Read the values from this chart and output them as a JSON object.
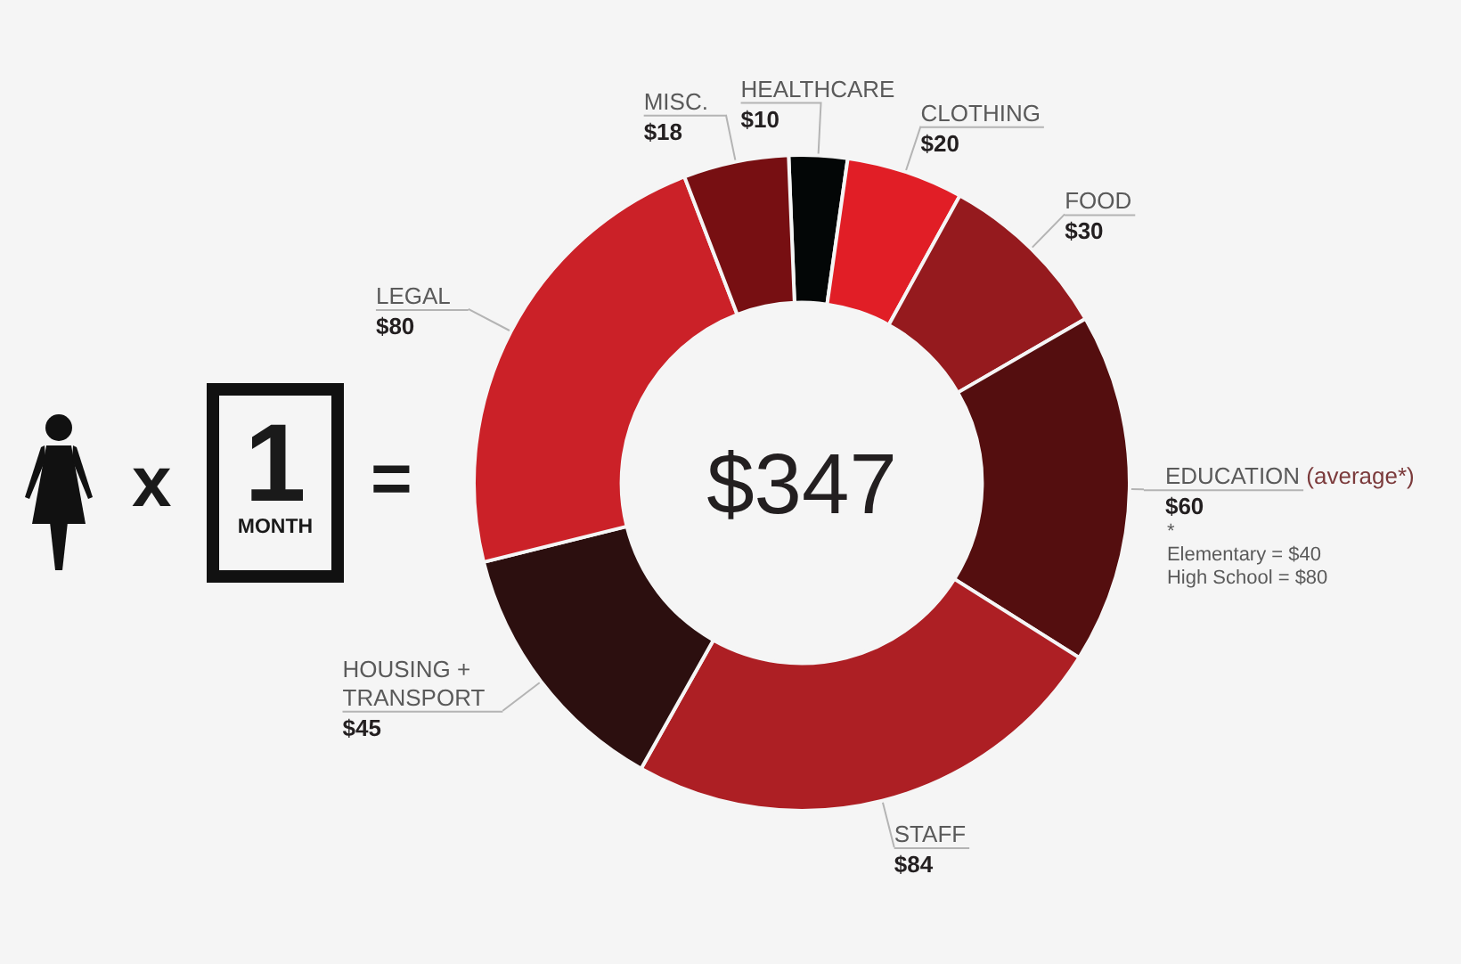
{
  "chart_data": {
    "type": "donut",
    "categories": [
      "HEALTHCARE",
      "CLOTHING",
      "FOOD",
      "EDUCATION (average*)",
      "STAFF",
      "HOUSING + TRANSPORT",
      "LEGAL",
      "MISC."
    ],
    "values": [
      10,
      20,
      30,
      60,
      84,
      45,
      80,
      18
    ],
    "colors": [
      "#030606",
      "#e11e26",
      "#951a1e",
      "#540e0f",
      "#ad1f24",
      "#2c0f0f",
      "#cb2128",
      "#770f12"
    ],
    "value_labels": [
      "$10",
      "$20",
      "$30",
      "$60",
      "$84",
      "$45",
      "$80",
      "$18"
    ],
    "annotations": [
      "x",
      "1",
      "MONTH",
      "=",
      "$347",
      "*",
      "Elementary = $40",
      "High School = $80"
    ]
  }
}
